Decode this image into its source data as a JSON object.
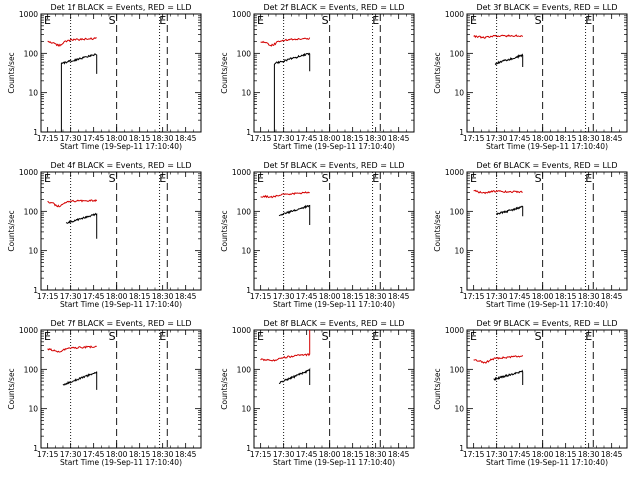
{
  "shared": {
    "xlabel": "Start Time (19-Sep-11 17:10:40)",
    "ylabel": "Counts/sec",
    "x_ticks": [
      "17:15",
      "17:30",
      "17:45",
      "18:00",
      "18:15",
      "18:30",
      "18:45"
    ],
    "y_ticks": [
      "1",
      "10",
      "100",
      "1000"
    ],
    "markers": [
      "E",
      "S",
      "E"
    ],
    "colors": {
      "events": "#000000",
      "lld": "#d40000"
    }
  },
  "chart_data": [
    {
      "type": "line",
      "title": "Det 1f BLACK = Events, RED = LLD",
      "xlim": [
        "17:10:40",
        "18:55:00"
      ],
      "ylim": [
        1,
        1000
      ],
      "yscale": "log",
      "dotted_vlines": [
        "17:30",
        "18:28"
      ],
      "dashed_vlines": [
        "18:00",
        "18:33"
      ],
      "series": [
        {
          "name": "Events",
          "color": "#000000",
          "start": "17:24",
          "end": "17:47",
          "start_value": 55,
          "end_value": 95,
          "drop_to": 30,
          "initial_rise_from": 1
        },
        {
          "name": "LLD",
          "color": "#d40000",
          "start": "17:15",
          "end": "17:47",
          "start_value": 200,
          "end_value": 240,
          "dip_value": 160
        }
      ]
    },
    {
      "type": "line",
      "title": "Det 2f BLACK = Events, RED = LLD",
      "xlim": [
        "17:10:40",
        "18:55:00"
      ],
      "ylim": [
        1,
        1000
      ],
      "yscale": "log",
      "dotted_vlines": [
        "17:30",
        "18:28"
      ],
      "dashed_vlines": [
        "18:00",
        "18:33"
      ],
      "series": [
        {
          "name": "Events",
          "color": "#000000",
          "start": "17:24",
          "end": "17:47",
          "start_value": 55,
          "end_value": 100,
          "drop_to": 35,
          "initial_rise_from": 1
        },
        {
          "name": "LLD",
          "color": "#d40000",
          "start": "17:15",
          "end": "17:47",
          "start_value": 200,
          "end_value": 240,
          "dip_value": 160
        }
      ]
    },
    {
      "type": "line",
      "title": "Det 3f BLACK = Events, RED = LLD",
      "xlim": [
        "17:10:40",
        "18:55:00"
      ],
      "ylim": [
        1,
        1000
      ],
      "yscale": "log",
      "dotted_vlines": [
        "17:30",
        "18:28"
      ],
      "dashed_vlines": [
        "18:00",
        "18:33"
      ],
      "series": [
        {
          "name": "Events",
          "color": "#000000",
          "start": "17:29",
          "end": "17:47",
          "start_value": 55,
          "end_value": 90,
          "drop_to": 45
        },
        {
          "name": "LLD",
          "color": "#d40000",
          "start": "17:15",
          "end": "17:47",
          "start_value": 270,
          "end_value": 280,
          "dip_value": 255
        }
      ]
    },
    {
      "type": "line",
      "title": "Det 4f BLACK = Events, RED = LLD",
      "xlim": [
        "17:10:40",
        "18:55:00"
      ],
      "ylim": [
        1,
        1000
      ],
      "yscale": "log",
      "dotted_vlines": [
        "17:30",
        "18:28"
      ],
      "dashed_vlines": [
        "18:00",
        "18:33"
      ],
      "series": [
        {
          "name": "Events",
          "color": "#000000",
          "start": "17:27",
          "end": "17:47",
          "start_value": 50,
          "end_value": 85,
          "drop_to": 20
        },
        {
          "name": "LLD",
          "color": "#d40000",
          "start": "17:15",
          "end": "17:47",
          "start_value": 175,
          "end_value": 190,
          "dip_value": 135
        }
      ]
    },
    {
      "type": "line",
      "title": "Det 5f BLACK = Events, RED = LLD",
      "xlim": [
        "17:10:40",
        "18:55:00"
      ],
      "ylim": [
        1,
        1000
      ],
      "yscale": "log",
      "dotted_vlines": [
        "17:30",
        "18:28"
      ],
      "dashed_vlines": [
        "18:00",
        "18:33"
      ],
      "series": [
        {
          "name": "Events",
          "color": "#000000",
          "start": "17:27",
          "end": "17:47",
          "start_value": 80,
          "end_value": 140,
          "drop_to": 45
        },
        {
          "name": "LLD",
          "color": "#d40000",
          "start": "17:15",
          "end": "17:47",
          "start_value": 240,
          "end_value": 310,
          "dip_value": 230
        }
      ]
    },
    {
      "type": "line",
      "title": "Det 6f BLACK = Events, RED = LLD",
      "xlim": [
        "17:10:40",
        "18:55:00"
      ],
      "ylim": [
        1,
        1000
      ],
      "yscale": "log",
      "dotted_vlines": [
        "17:30",
        "18:28"
      ],
      "dashed_vlines": [
        "18:00",
        "18:33"
      ],
      "series": [
        {
          "name": "Events",
          "color": "#000000",
          "start": "17:30",
          "end": "17:47",
          "start_value": 85,
          "end_value": 130,
          "drop_to": 75
        },
        {
          "name": "LLD",
          "color": "#d40000",
          "start": "17:15",
          "end": "17:47",
          "start_value": 330,
          "end_value": 310,
          "dip_value": 290
        }
      ]
    },
    {
      "type": "line",
      "title": "Det 7f BLACK = Events, RED = LLD",
      "xlim": [
        "17:10:40",
        "18:55:00"
      ],
      "ylim": [
        1,
        1000
      ],
      "yscale": "log",
      "dotted_vlines": [
        "17:30",
        "18:28"
      ],
      "dashed_vlines": [
        "18:00",
        "18:33"
      ],
      "series": [
        {
          "name": "Events",
          "color": "#000000",
          "start": "17:25",
          "end": "17:47",
          "start_value": 40,
          "end_value": 85,
          "drop_to": 30
        },
        {
          "name": "LLD",
          "color": "#d40000",
          "start": "17:15",
          "end": "17:47",
          "start_value": 320,
          "end_value": 380,
          "dip_value": 280
        }
      ]
    },
    {
      "type": "line",
      "title": "Det 8f BLACK = Events, RED = LLD",
      "xlim": [
        "17:10:40",
        "18:55:00"
      ],
      "ylim": [
        1,
        1000
      ],
      "yscale": "log",
      "dotted_vlines": [
        "17:30",
        "18:28"
      ],
      "dashed_vlines": [
        "18:00",
        "18:33"
      ],
      "series": [
        {
          "name": "Events",
          "color": "#000000",
          "start": "17:27",
          "end": "17:47",
          "start_value": 45,
          "end_value": 95,
          "drop_to": 40
        },
        {
          "name": "LLD",
          "color": "#d40000",
          "start": "17:15",
          "end": "17:47",
          "start_value": 175,
          "end_value": 240,
          "dip_value": 165,
          "final_rise_to": 1000
        }
      ]
    },
    {
      "type": "line",
      "title": "Det 9f BLACK = Events, RED = LLD",
      "xlim": [
        "17:10:40",
        "18:55:00"
      ],
      "ylim": [
        1,
        1000
      ],
      "yscale": "log",
      "dotted_vlines": [
        "17:30",
        "18:28"
      ],
      "dashed_vlines": [
        "18:00",
        "18:33"
      ],
      "series": [
        {
          "name": "Events",
          "color": "#000000",
          "start": "17:28",
          "end": "17:47",
          "start_value": 55,
          "end_value": 90,
          "drop_to": 40
        },
        {
          "name": "LLD",
          "color": "#d40000",
          "start": "17:15",
          "end": "17:47",
          "start_value": 170,
          "end_value": 220,
          "dip_value": 150
        }
      ]
    }
  ]
}
